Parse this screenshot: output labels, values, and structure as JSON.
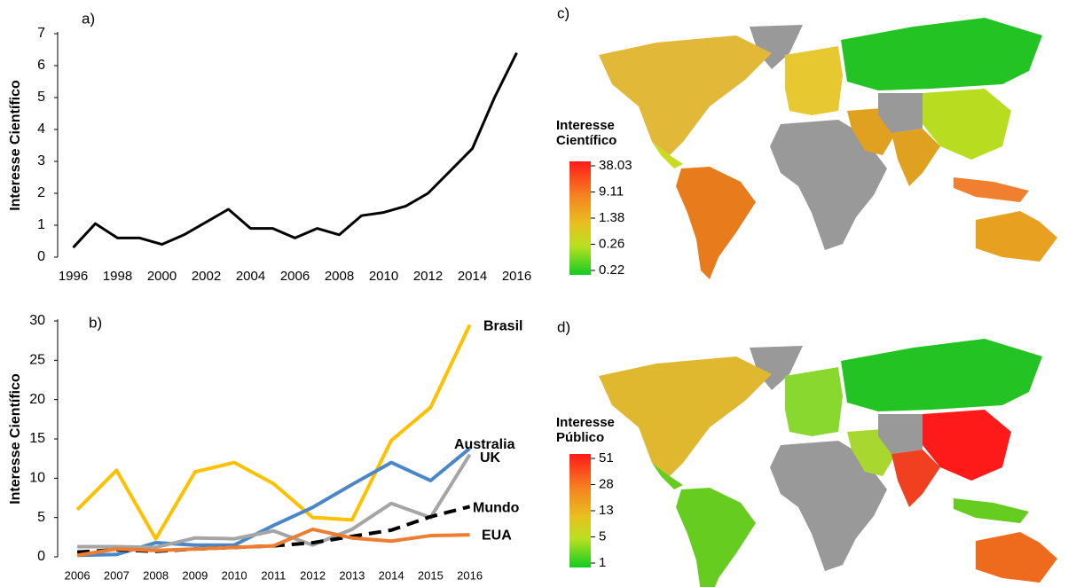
{
  "chart_data": [
    {
      "type": "line",
      "annotation": "a)",
      "ylabel": "Interesse Científico",
      "x": [
        1996,
        1997,
        1998,
        1999,
        2000,
        2001,
        2002,
        2003,
        2004,
        2005,
        2006,
        2007,
        2008,
        2009,
        2010,
        2011,
        2012,
        2013,
        2014,
        2015,
        2016
      ],
      "series": [
        {
          "name": "Mundo",
          "color": "#000000",
          "values": [
            0.3,
            1.05,
            0.6,
            0.6,
            0.4,
            0.7,
            1.1,
            1.5,
            0.9,
            0.9,
            0.6,
            0.9,
            0.7,
            1.3,
            1.4,
            1.6,
            2.0,
            2.7,
            3.4,
            5.0,
            6.4
          ]
        }
      ],
      "xlim": [
        1995.3,
        2016.5
      ],
      "xticks": [
        1996,
        1998,
        2000,
        2002,
        2004,
        2006,
        2008,
        2010,
        2012,
        2014,
        2016
      ],
      "ylim": [
        0,
        7
      ],
      "yticks": [
        0,
        1,
        2,
        3,
        4,
        5,
        6,
        7
      ]
    },
    {
      "type": "line",
      "annotation": "b)",
      "ylabel": "Interesse Científico",
      "x": [
        2006,
        2007,
        2008,
        2009,
        2010,
        2011,
        2012,
        2013,
        2014,
        2015,
        2016
      ],
      "series": [
        {
          "name": "Brasil",
          "color": "#ffc000",
          "values": [
            6,
            11,
            2.3,
            10.8,
            12,
            9.3,
            5,
            4.7,
            14.8,
            19,
            29.5
          ]
        },
        {
          "name": "Australia",
          "color": "#4a86c8",
          "values": [
            0.2,
            0.3,
            1.8,
            1.5,
            1.5,
            4,
            6.3,
            9.2,
            12,
            9.7,
            13.8
          ]
        },
        {
          "name": "UK",
          "color": "#a5a5a5",
          "values": [
            1.3,
            1.3,
            1.2,
            2.4,
            2.3,
            3.3,
            1.5,
            3.5,
            6.8,
            5,
            13
          ]
        },
        {
          "name": "Mundo",
          "color": "#000000",
          "style": "dashed",
          "values": [
            0.6,
            0.9,
            0.7,
            1.0,
            1.2,
            1.4,
            1.8,
            2.6,
            3.4,
            5.1,
            6.4
          ]
        },
        {
          "name": "EUA",
          "color": "#ed7d31",
          "values": [
            0.2,
            1.0,
            0.8,
            1.0,
            1.2,
            1.4,
            3.5,
            2.4,
            2.0,
            2.7,
            2.8
          ]
        }
      ],
      "xlim": [
        2005.5,
        2016.8
      ],
      "xticks": [
        2006,
        2007,
        2008,
        2009,
        2010,
        2011,
        2012,
        2013,
        2014,
        2015,
        2016
      ],
      "ylim": [
        0,
        30
      ],
      "yticks": [
        0,
        5,
        10,
        15,
        20,
        25,
        30
      ]
    }
  ],
  "maps": [
    {
      "annotation": "c)",
      "legend_title": "Interesse Científico",
      "legend_labels": [
        38.03,
        9.11,
        1.38,
        0.26,
        0.22
      ]
    },
    {
      "annotation": "d)",
      "legend_title": "Interesse Público",
      "legend_labels": [
        51,
        28,
        13,
        5,
        1
      ]
    }
  ]
}
